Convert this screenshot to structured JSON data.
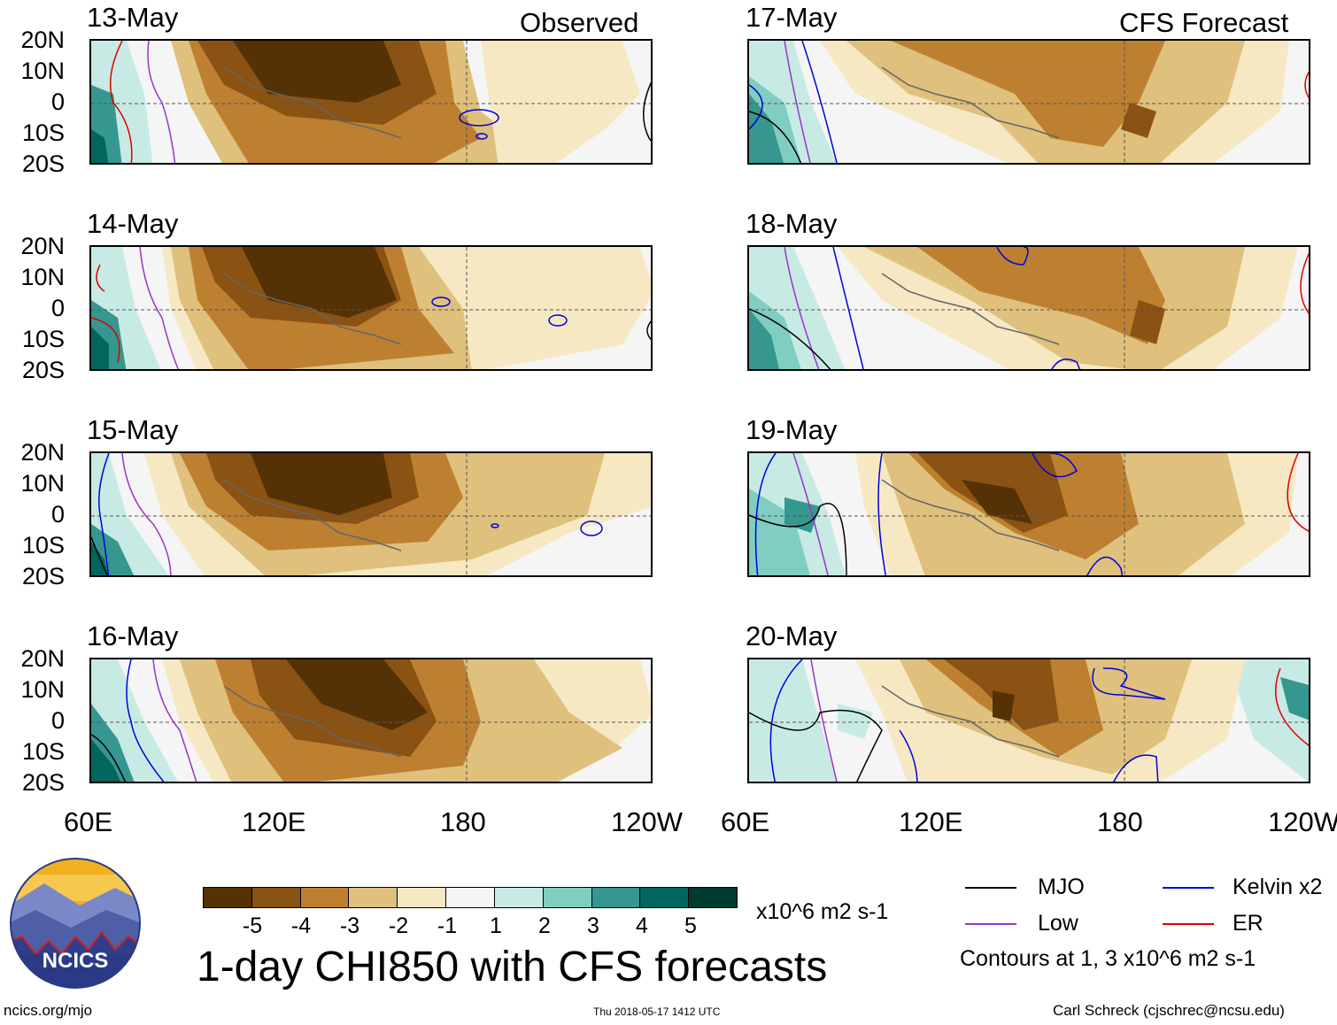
{
  "observed_label": "Observed",
  "forecast_label": "CFS Forecast",
  "panels_left": [
    {
      "date": "13-May"
    },
    {
      "date": "14-May"
    },
    {
      "date": "15-May"
    },
    {
      "date": "16-May"
    }
  ],
  "panels_right": [
    {
      "date": "17-May"
    },
    {
      "date": "18-May"
    },
    {
      "date": "19-May"
    },
    {
      "date": "20-May"
    }
  ],
  "lat_labels": [
    "20N",
    "10N",
    "0",
    "10S",
    "20S"
  ],
  "lon_labels": [
    "60E",
    "120E",
    "180",
    "120W"
  ],
  "colorbar": {
    "colors": [
      "#553206",
      "#8a5213",
      "#bd8031",
      "#dfc07c",
      "#f6e8c3",
      "#f5f5f5",
      "#c7eae5",
      "#80cdc1",
      "#35978f",
      "#01665e",
      "#003c30"
    ],
    "labels": [
      "-5",
      "-4",
      "-3",
      "-2",
      "-1",
      "1",
      "2",
      "3",
      "4",
      "5"
    ],
    "units": "x10^6 m2 s-1"
  },
  "title": "1-day CHI850 with CFS forecasts",
  "legend": {
    "items": [
      {
        "name": "MJO",
        "color": "#000000"
      },
      {
        "name": "Kelvin x2",
        "color": "#0000dd"
      },
      {
        "name": "Low",
        "color": "#9933cc"
      },
      {
        "name": "ER",
        "color": "#dd0000"
      }
    ],
    "contour_note": "Contours at 1, 3 x10^6 m2 s-1"
  },
  "logo": {
    "text": "NCICS"
  },
  "footer": {
    "website": "ncics.org/mjo",
    "timestamp": "Thu 2018-05-17 1412 UTC",
    "author": "Carl Schreck (cjschrec@ncsu.edu)"
  }
}
